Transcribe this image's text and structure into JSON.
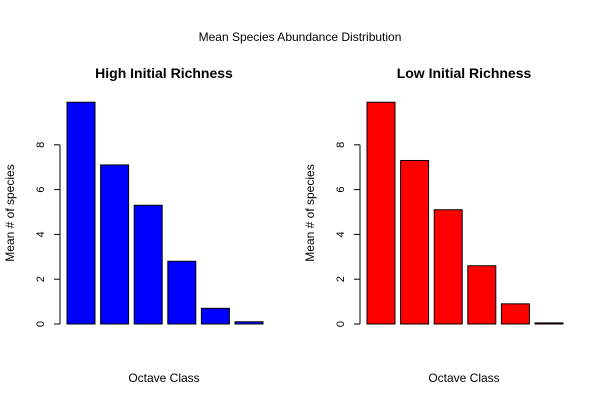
{
  "figure": {
    "title": "Mean Species Abundance Distribution"
  },
  "chart_data": [
    {
      "type": "bar",
      "title": "High Initial Richness",
      "xlabel": "Octave Class",
      "ylabel": "Mean # of species",
      "ylim": [
        0,
        10
      ],
      "yticks": [
        0,
        2,
        4,
        6,
        8
      ],
      "bar_color": "#0000ff",
      "categories": [
        "",
        "",
        "",
        "",
        "",
        ""
      ],
      "values": [
        9.9,
        7.1,
        5.3,
        2.8,
        0.7,
        0.1
      ]
    },
    {
      "type": "bar",
      "title": "Low Initial Richness",
      "xlabel": "Octave Class",
      "ylabel": "Mean # of species",
      "ylim": [
        0,
        10
      ],
      "yticks": [
        0,
        2,
        4,
        6,
        8
      ],
      "bar_color": "#ff0000",
      "categories": [
        "",
        "",
        "",
        "",
        "",
        ""
      ],
      "values": [
        9.9,
        7.3,
        5.1,
        2.6,
        0.9,
        0.05
      ]
    }
  ]
}
